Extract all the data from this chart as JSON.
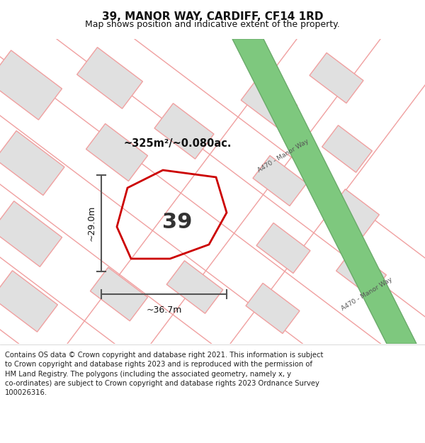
{
  "title": "39, MANOR WAY, CARDIFF, CF14 1RD",
  "subtitle": "Map shows position and indicative extent of the property.",
  "footer_line1": "Contains OS data © Crown copyright and database right 2021. This information is subject",
  "footer_line2": "to Crown copyright and database rights 2023 and is reproduced with the permission of",
  "footer_line3": "HM Land Registry. The polygons (including the associated geometry, namely x, y",
  "footer_line4": "co-ordinates) are subject to Crown copyright and database rights 2023 Ordnance Survey",
  "footer_line5": "100026316.",
  "map_bg": "#f0f0f0",
  "title_bg": "#ffffff",
  "footer_bg": "#ffffff",
  "road_green_color": "#7ec87e",
  "road_green_border": "#6aaa6a",
  "block_fill": "#e0e0e0",
  "block_stroke": "#f0a0a0",
  "street_stroke": "#f0a0a0",
  "plot_stroke": "#cc0000",
  "plot_fill": "none",
  "dim_color": "#555555",
  "road_label_color": "#555555",
  "area_label": "~325m²/~0.080ac.",
  "number_label": "39",
  "dim_height_label": "~29.0m",
  "dim_width_label": "~36.7m",
  "road_label": "A470 - Manor Way",
  "title_fontsize": 11,
  "subtitle_fontsize": 9,
  "footer_fontsize": 7.2
}
